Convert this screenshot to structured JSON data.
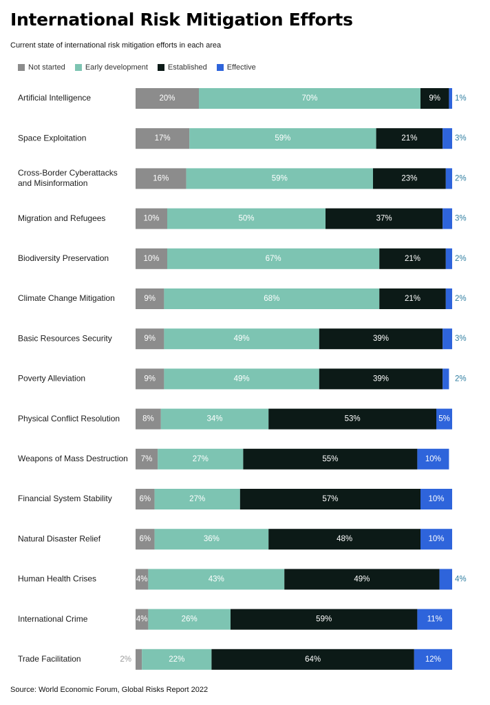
{
  "title": "International Risk Mitigation Efforts",
  "subtitle": "Current state of international risk mitigation efforts in each area",
  "source": "Source: World Economic Forum, Global Risks Report 2022",
  "chart_data": {
    "type": "bar",
    "orientation": "horizontal",
    "stacked": true,
    "unit": "%",
    "legend_position": "top-left",
    "categories": [
      "Artificial Intelligence",
      "Space Exploitation",
      "Cross-Border Cyberattacks and Misinformation",
      "Migration and Refugees",
      "Biodiversity Preservation",
      "Climate Change Mitigation",
      "Basic Resources Security",
      "Poverty Alleviation",
      "Physical Conflict Resolution",
      "Weapons of Mass Destruction",
      "Financial System Stability",
      "Natural Disaster Relief",
      "Human Health Crises",
      "International Crime",
      "Trade Facilitation"
    ],
    "category_lines": [
      [
        "Artificial Intelligence"
      ],
      [
        "Space Exploitation"
      ],
      [
        "Cross-Border Cyberattacks",
        "and Misinformation"
      ],
      [
        "Migration and Refugees"
      ],
      [
        "Biodiversity Preservation"
      ],
      [
        "Climate Change Mitigation"
      ],
      [
        "Basic Resources Security"
      ],
      [
        "Poverty Alleviation"
      ],
      [
        "Physical Conflict Resolution"
      ],
      [
        "Weapons of Mass Destruction"
      ],
      [
        "Financial System Stability"
      ],
      [
        "Natural Disaster Relief"
      ],
      [
        "Human Health Crises"
      ],
      [
        "International Crime"
      ],
      [
        "Trade Facilitation"
      ]
    ],
    "series": [
      {
        "name": "Not started",
        "color": "#8c8c8c",
        "label_color": "#ffffff",
        "values": [
          20,
          17,
          16,
          10,
          10,
          9,
          9,
          9,
          8,
          7,
          6,
          6,
          4,
          4,
          2
        ]
      },
      {
        "name": "Early development",
        "color": "#7dc4b2",
        "label_color": "#ffffff",
        "values": [
          70,
          59,
          59,
          50,
          67,
          68,
          49,
          49,
          34,
          27,
          27,
          36,
          43,
          26,
          22
        ]
      },
      {
        "name": "Established",
        "color": "#0c1a17",
        "label_color": "#ffffff",
        "values": [
          9,
          21,
          23,
          37,
          21,
          21,
          39,
          39,
          53,
          55,
          57,
          48,
          49,
          59,
          64
        ]
      },
      {
        "name": "Effective",
        "color": "#2e64db",
        "label_color": "#ffffff",
        "outside_label_color": "#2f7ea1",
        "values": [
          1,
          3,
          2,
          3,
          2,
          2,
          3,
          2,
          5,
          10,
          10,
          10,
          4,
          11,
          12
        ]
      }
    ],
    "outside_label_color_left": "#9a9a9a",
    "xlim": [
      0,
      100
    ],
    "grid": false
  }
}
